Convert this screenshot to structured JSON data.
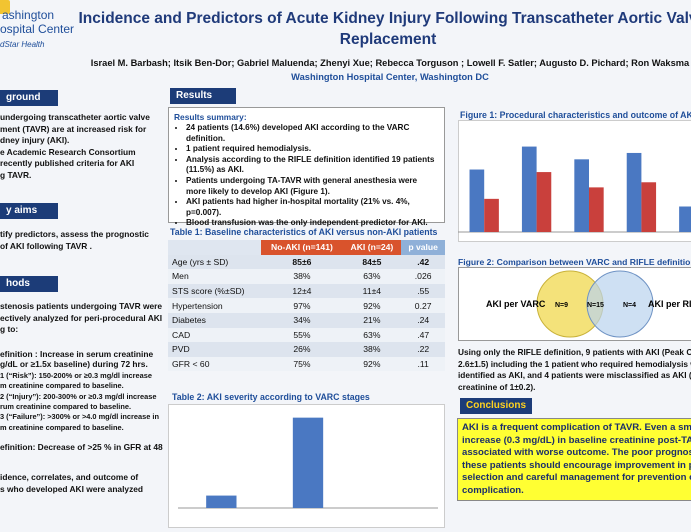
{
  "header": {
    "logo_lines": [
      "ashington",
      "ospital Center",
      "dStar Health"
    ],
    "title_lines": [
      "Incidence and Predictors of Acute Kidney Injury Following Transcatheter Aortic Valv",
      "Replacement"
    ],
    "authors": "Israel M. Barbash; Itsik Ben-Dor; Gabriel Maluenda; Zhenyi Xue; Rebecca Torguson    ; Lowell F. Satler; Augusto D. Pichard; Ron Waksma",
    "affiliation": "Washington Hospital Center, Washington DC"
  },
  "left": {
    "background": {
      "heading": "ground",
      "lines": [
        "undergoing transcatheter aortic valve",
        "ment (TAVR) are at increased risk for",
        "dney injury (AKI).",
        "e Academic Research Consortium",
        "recently published criteria for AKI",
        "g TAVR."
      ]
    },
    "aims": {
      "heading": "y aims",
      "lines": [
        "tify predictors, assess the prognostic",
        "of AKI following TAVR ."
      ]
    },
    "methods": {
      "heading": "hods",
      "paragraphs": [
        [
          "stenosis patients undergoing TAVR were",
          "ectively analyzed for peri-procedural AKI",
          "g to:"
        ],
        [
          "efinition : Increase in serum  creatinine",
          "g/dL or ≥1.5x baseline)  during 72 hrs.",
          "1 (“Risk”): 150-200% or ≥0.3 mg/dl increase",
          "m creatinine compared to baseline.",
          "2 (“Injury”): 200-300% or ≥0.3 mg/dl increase",
          "rum creatinine compared to baseline.",
          "3 (“Failure”): >300% or >4.0 mg/dl  increase in",
          "m creatinine compared to  baseline."
        ],
        [
          "efinition:  Decrease of >25 % in GFR at 48"
        ],
        [
          "idence, correlates, and outcome of",
          "s who developed AKI were analyzed"
        ]
      ]
    }
  },
  "results": {
    "heading": "Results",
    "summary_title": "Results summary:",
    "bullets": [
      "24 patients (14.6%) developed AKI according   to the VARC definition.",
      "1 patient required hemodialysis.",
      "Analysis according to the RIFLE definition identified 19 patients (11.5%) as AKI.",
      "Patients undergoing TA-TAVR with general anesthesia were more likely to develop AKI (Figure 1).",
      "AKI patients had higher  in-hospital mortality  (21% vs. 4%, p=0.007).",
      "Blood transfusion was the only independent predictor for AKI."
    ]
  },
  "table": {
    "title": "Table 1: Baseline characteristics of AKI versus non-AKI patients",
    "columns": [
      "No-AKI (n=141)",
      "AKI (n=24)",
      "p value"
    ],
    "rows": [
      [
        "Age (yrs ± SD)",
        "85±6",
        "84±5",
        ".42"
      ],
      [
        "Men",
        "38%",
        "63%",
        ".026"
      ],
      [
        "STS score (%±SD)",
        "12±4",
        "11±4",
        ".55"
      ],
      [
        "Hypertension",
        "97%",
        "92%",
        "0.27"
      ],
      [
        "Diabetes",
        "34%",
        "21%",
        ".24"
      ],
      [
        "CAD",
        "55%",
        "63%",
        ".47"
      ],
      [
        "PVD",
        "26%",
        "38%",
        ".22"
      ],
      [
        "GFR < 60",
        "75%",
        "92%",
        ".11"
      ]
    ]
  },
  "figure1": {
    "title": "Figure 1: Procedural characteristics and outcome of AKI pati",
    "chart_data": {
      "type": "bar",
      "categories": [
        null,
        null,
        null,
        null,
        null
      ],
      "ylim": [
        0,
        80
      ],
      "series": [
        {
          "color": "#4a78c2",
          "values": [
            49,
            67,
            57,
            62,
            20
          ]
        },
        {
          "color": "#c9403c",
          "values": [
            26,
            47,
            35,
            39,
            12
          ]
        }
      ]
    }
  },
  "figure_stages": {
    "title": "Table 2: AKI severity according  to VARC stages",
    "chart_data": {
      "type": "bar",
      "categories": [
        null,
        null,
        null
      ],
      "values": [
        11,
        80,
        0
      ],
      "color": "#4a78c2",
      "ylim": [
        0,
        85
      ]
    }
  },
  "figure2": {
    "title": "Figure 2: Comparison between VARC and RIFLE definitions for A",
    "left_label": "AKI per VARC",
    "right_label": "AKI per RIFL",
    "counts": [
      "N=9",
      "N=15",
      "N=4"
    ],
    "lines": [
      "Using only the RIFLE definition, 9 patients with AKI (Peak Crea",
      "2.6±1.5) including the 1 patient who required hemodialysis we",
      "identified as AKI, and 4 patients were   misclassified  as AKI (Pe",
      "creatinine of 1±0.2)."
    ]
  },
  "conclusions": {
    "heading": "Conclusions",
    "lines": [
      "AKI is a frequent complication of TAVR. Even a sma",
      "increase (0.3 mg/dL) in baseline creatinine post-TAV",
      "associated with worse outcome. The poor prognosi",
      "these patients should encourage improvement in p",
      "selection and careful management for prevention o",
      "complication."
    ]
  }
}
